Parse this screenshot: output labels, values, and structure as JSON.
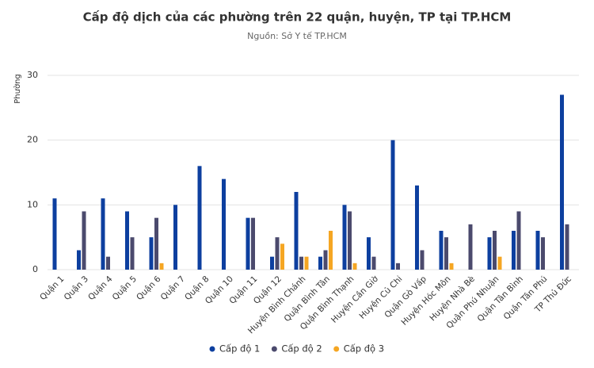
{
  "chart_data": {
    "type": "bar",
    "title": "Cấp độ dịch của các phường trên 22 quận, huyện, TP tại TP.HCM",
    "subtitle": "Nguồn: Sở Y tế TP.HCM",
    "y_label": "Phường",
    "categories": [
      "Quận 1",
      "Quận 3",
      "Quận 4",
      "Quận 5",
      "Quận 6",
      "Quận 7",
      "Quận 8",
      "Quận 10",
      "Quận 11",
      "Quận 12",
      "Huyện Bình Chánh",
      "Quận Bình Tân",
      "Quận Bình Thạnh",
      "Huyện Cần Giờ",
      "Huyện Củ Chi",
      "Quận Gò Vấp",
      "Huyện Hóc Môn",
      "Huyện Nhà Bè",
      "Quận Phú Nhuận",
      "Quận Tân Bình",
      "Quận Tân Phú",
      "TP Thủ Đức"
    ],
    "series": [
      {
        "name": "Cấp độ 1",
        "color": "#0d3f9f",
        "values": [
          11,
          3,
          11,
          9,
          5,
          10,
          16,
          14,
          8,
          2,
          12,
          2,
          10,
          5,
          20,
          13,
          6,
          0,
          5,
          6,
          6,
          27
        ]
      },
      {
        "name": "Cấp độ 2",
        "color": "#4b4a6d",
        "values": [
          0,
          9,
          2,
          5,
          8,
          0,
          0,
          0,
          8,
          5,
          2,
          3,
          9,
          2,
          1,
          3,
          5,
          7,
          6,
          9,
          5,
          7
        ]
      },
      {
        "name": "Cấp độ 3",
        "color": "#f5a623",
        "values": [
          0,
          0,
          0,
          0,
          1,
          0,
          0,
          0,
          0,
          4,
          2,
          6,
          1,
          0,
          0,
          0,
          1,
          0,
          2,
          0,
          0,
          0
        ]
      }
    ],
    "ylim": [
      0,
      30
    ],
    "yticks": [
      0,
      10,
      20,
      30
    ],
    "grid": true,
    "legend": "bottom"
  }
}
